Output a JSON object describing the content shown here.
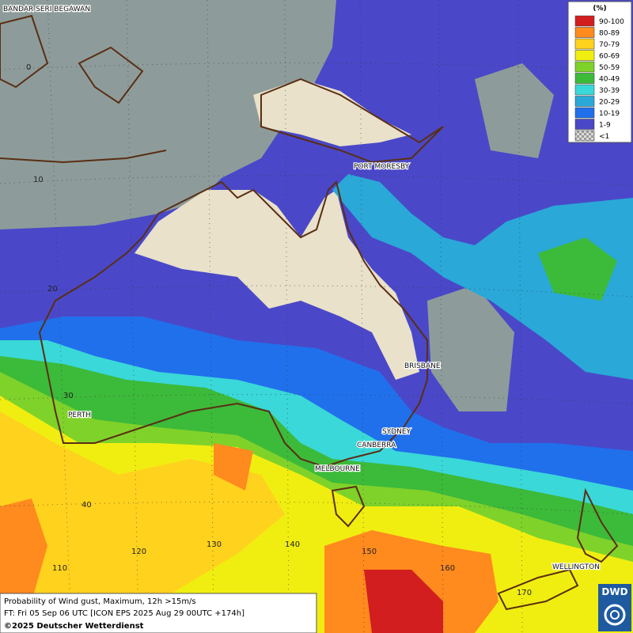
{
  "legend": {
    "title": "(%)",
    "entries": [
      {
        "label": "90-100",
        "color": "#d21e1e"
      },
      {
        "label": "80-89",
        "color": "#ff8a1e"
      },
      {
        "label": "70-79",
        "color": "#ffd21e"
      },
      {
        "label": "60-69",
        "color": "#f0ee10"
      },
      {
        "label": "50-59",
        "color": "#7fd22a"
      },
      {
        "label": "40-49",
        "color": "#3cba3a"
      },
      {
        "label": "30-39",
        "color": "#3ad8d8"
      },
      {
        "label": "20-29",
        "color": "#2aa8d8"
      },
      {
        "label": "10-19",
        "color": "#2070ec"
      },
      {
        "label": "1-9",
        "color": "#4a48c8"
      },
      {
        "label": "<1",
        "color": "checker"
      }
    ]
  },
  "cities": [
    "BANDAR SERI BEGAWAN",
    "PORT MORESBY",
    "BRISBANE",
    "PERTH",
    "SYDNEY",
    "CANBERRA",
    "MELBOURNE",
    "WELLINGTON"
  ],
  "grid_labels": [
    "0",
    "10",
    "20",
    "30",
    "40",
    "110",
    "120",
    "130",
    "140",
    "150",
    "160",
    "170"
  ],
  "footer": {
    "product": "Probability of Wind gust, Maximum, 12h >15m/s",
    "forecast": "FT: Fri 05 Sep 06 UTC [ICON EPS 2025 Aug 29 00UTC +174h]",
    "copyright": "©2025 Deutscher Wetterdienst"
  },
  "logo": "DWD"
}
